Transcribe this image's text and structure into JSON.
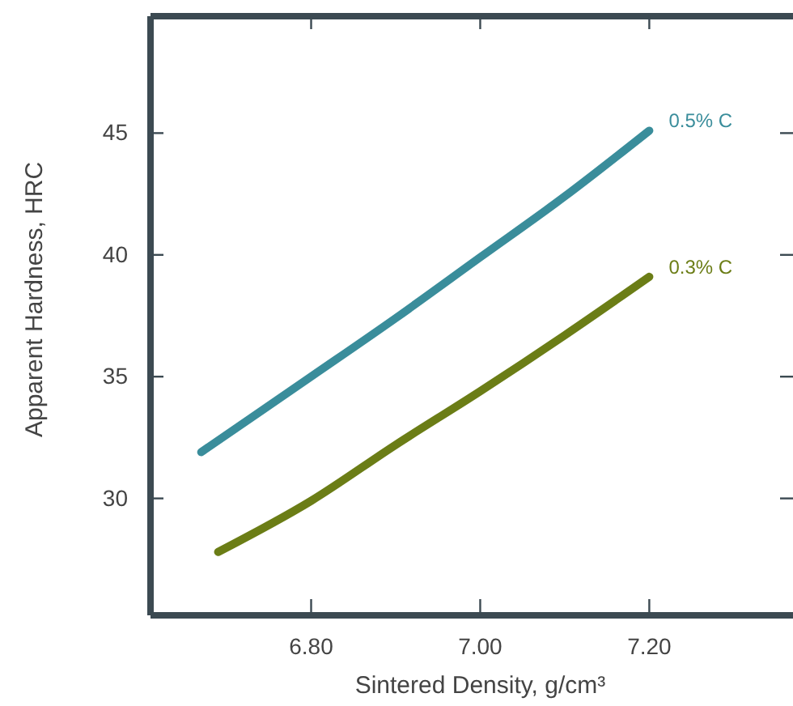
{
  "chart_data": {
    "type": "line",
    "xlabel": "Sintered Density, g/cm³",
    "ylabel": "Apparent Hardness, HRC",
    "xlim": [
      6.61,
      7.37
    ],
    "xticks": [
      {
        "value": 6.8,
        "label": "6.80"
      },
      {
        "value": 7.0,
        "label": "7.00"
      },
      {
        "value": 7.2,
        "label": "7.20"
      }
    ],
    "ylim": [
      25.2,
      49.8
    ],
    "yticks": [
      30,
      35,
      40,
      45
    ],
    "grid": false,
    "legend": false,
    "marker": "none",
    "line_style": "solid",
    "series": [
      {
        "name": "0.5% C",
        "color": "#3a8d9b",
        "x": [
          6.67,
          6.8,
          6.9,
          7.0,
          7.1,
          7.2
        ],
        "values": [
          31.9,
          35.0,
          37.4,
          39.9,
          42.4,
          45.1
        ]
      },
      {
        "name": "0.3% C",
        "color": "#6b7d16",
        "x": [
          6.69,
          6.8,
          6.9,
          7.0,
          7.1,
          7.2
        ],
        "values": [
          27.8,
          29.9,
          32.2,
          34.4,
          36.7,
          39.1
        ]
      }
    ]
  }
}
